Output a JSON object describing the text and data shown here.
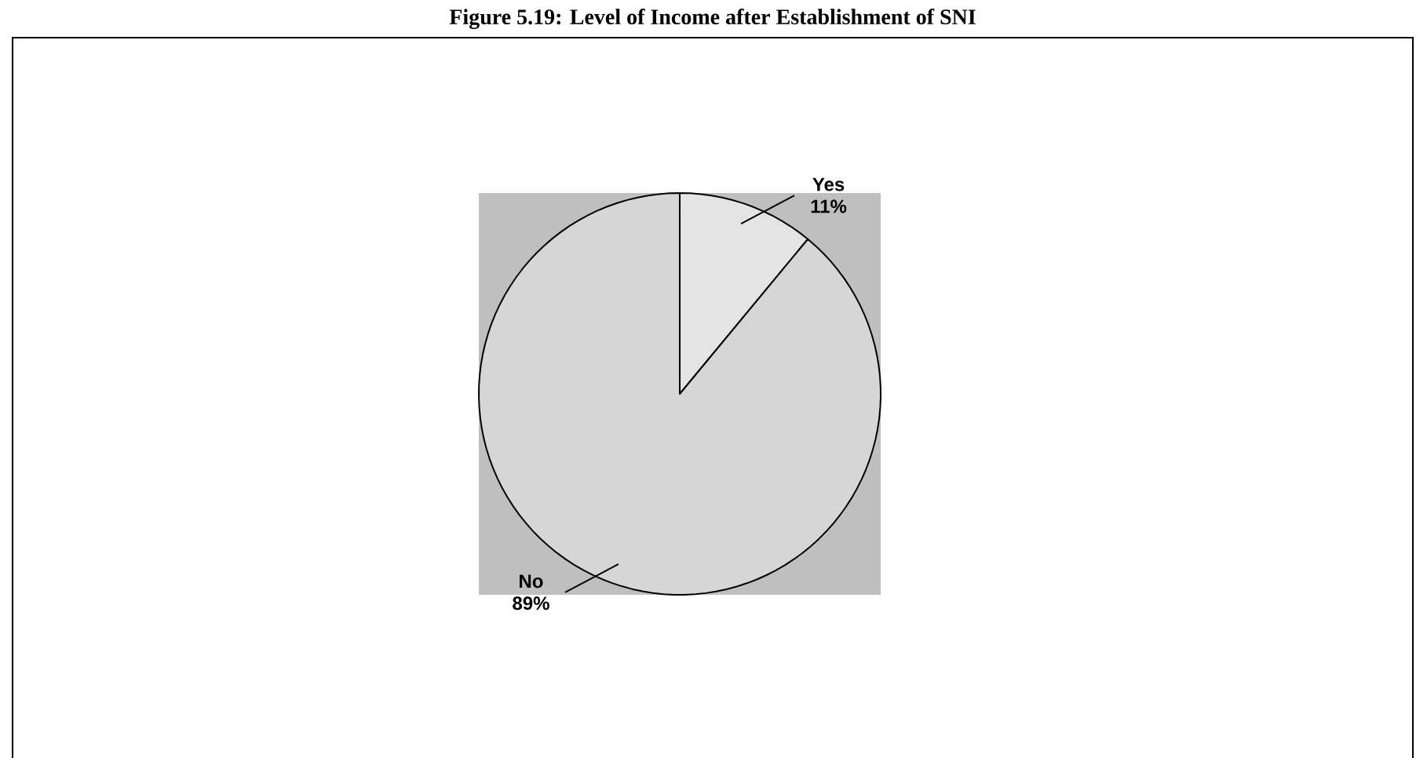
{
  "chart_data": {
    "type": "pie",
    "title": "Figure 5.19: Level of Income after Establishment of SNI",
    "categories": [
      "Yes",
      "No"
    ],
    "values": [
      11,
      89
    ],
    "colors": [
      "#e4e4e4",
      "#d6d6d6"
    ],
    "value_labels": [
      "11%",
      "89%"
    ]
  }
}
